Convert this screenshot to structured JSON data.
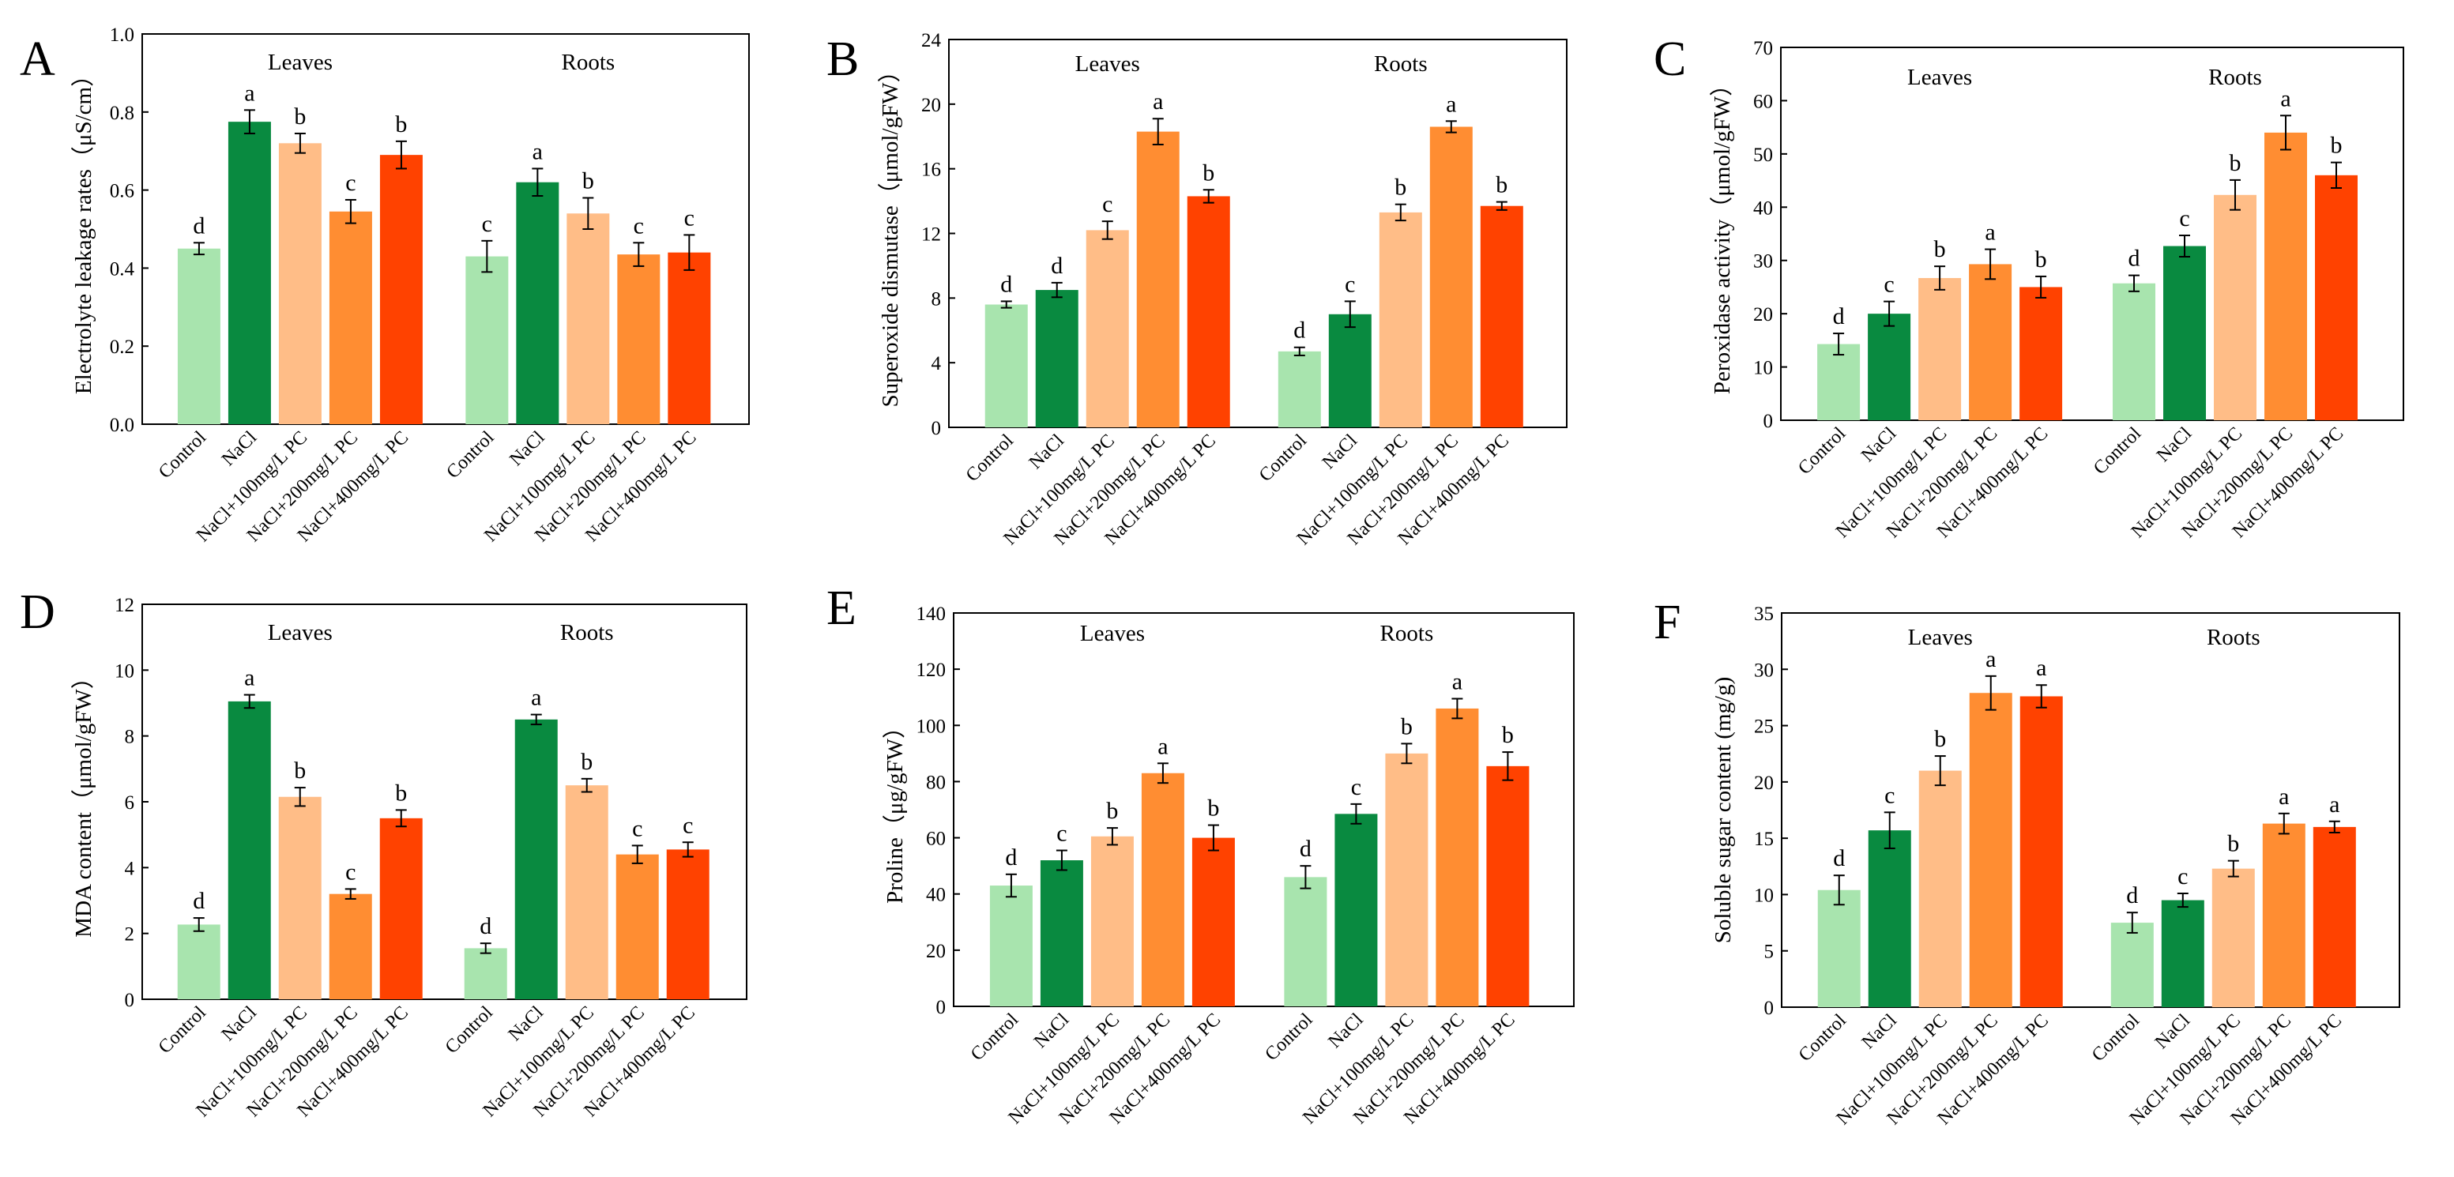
{
  "colors": {
    "Control": "#a8e4ae",
    "NaCl": "#098a40",
    "NaCl+100mg/L PC": "#ffbd87",
    "NaCl+200mg/L PC": "#ff8d32",
    "NaCl+400mg/L PC": "#ff4200"
  },
  "chart_data": [
    {
      "panel": "A",
      "type": "bar",
      "ylabel": "Electrolyte leakage rates（μS/cm）",
      "ylim": [
        0,
        1.0
      ],
      "yticks": [
        "0.0",
        "0.2",
        "0.4",
        "0.6",
        "0.8",
        "1.0"
      ],
      "categories": [
        "Control",
        "NaCl",
        "NaCl+100mg/L PC",
        "NaCl+200mg/L PC",
        "NaCl+400mg/L PC"
      ],
      "groups": [
        {
          "name": "Leaves",
          "values": [
            0.45,
            0.775,
            0.72,
            0.545,
            0.69
          ],
          "errors": [
            0.015,
            0.03,
            0.025,
            0.03,
            0.035
          ],
          "letters": [
            "d",
            "a",
            "b",
            "c",
            "b"
          ]
        },
        {
          "name": "Roots",
          "values": [
            0.43,
            0.62,
            0.54,
            0.435,
            0.44
          ],
          "errors": [
            0.04,
            0.035,
            0.04,
            0.03,
            0.045
          ],
          "letters": [
            "c",
            "a",
            "b",
            "c",
            "c"
          ]
        }
      ]
    },
    {
      "panel": "B",
      "type": "bar",
      "ylabel": "Superoxide dismutase（μmol/gFW）",
      "ylim": [
        0,
        24
      ],
      "yticks": [
        "0",
        "4",
        "8",
        "12",
        "16",
        "20",
        "24"
      ],
      "categories": [
        "Control",
        "NaCl",
        "NaCl+100mg/L PC",
        "NaCl+200mg/L PC",
        "NaCl+400mg/L PC"
      ],
      "groups": [
        {
          "name": "Leaves",
          "values": [
            7.6,
            8.5,
            12.2,
            18.3,
            14.3
          ],
          "errors": [
            0.2,
            0.45,
            0.55,
            0.8,
            0.4
          ],
          "letters": [
            "d",
            "d",
            "c",
            "a",
            "b"
          ]
        },
        {
          "name": "Roots",
          "values": [
            4.7,
            7.0,
            13.3,
            18.6,
            13.7
          ],
          "errors": [
            0.25,
            0.8,
            0.5,
            0.35,
            0.25
          ],
          "letters": [
            "d",
            "c",
            "b",
            "a",
            "b"
          ]
        }
      ]
    },
    {
      "panel": "C",
      "type": "bar",
      "ylabel": "Peroxidase activity（μmol/gFW）",
      "ylim": [
        0,
        70
      ],
      "yticks": [
        "0",
        "10",
        "20",
        "30",
        "40",
        "50",
        "60",
        "70"
      ],
      "categories": [
        "Control",
        "NaCl",
        "NaCl+100mg/L PC",
        "NaCl+200mg/L PC",
        "NaCl+400mg/L PC"
      ],
      "groups": [
        {
          "name": "Leaves",
          "values": [
            14.3,
            20.0,
            26.7,
            29.3,
            25.0
          ],
          "errors": [
            2.0,
            2.3,
            2.2,
            2.8,
            2.0
          ],
          "letters": [
            "d",
            "c",
            "b",
            "a",
            "b"
          ]
        },
        {
          "name": "Roots",
          "values": [
            25.7,
            32.7,
            42.3,
            54.0,
            46.0
          ],
          "errors": [
            1.5,
            2.0,
            2.8,
            3.2,
            2.4
          ],
          "letters": [
            "d",
            "c",
            "b",
            "a",
            "b"
          ]
        }
      ]
    },
    {
      "panel": "D",
      "type": "bar",
      "ylabel": "MDA content（μmol/gFW）",
      "ylim": [
        0,
        12
      ],
      "yticks": [
        "0",
        "2",
        "4",
        "6",
        "8",
        "10",
        "12"
      ],
      "categories": [
        "Control",
        "NaCl",
        "NaCl+100mg/L PC",
        "NaCl+200mg/L PC",
        "NaCl+400mg/L PC"
      ],
      "groups": [
        {
          "name": "Leaves",
          "values": [
            2.27,
            9.05,
            6.15,
            3.2,
            5.5
          ],
          "errors": [
            0.2,
            0.2,
            0.28,
            0.15,
            0.25
          ],
          "letters": [
            "d",
            "a",
            "b",
            "c",
            "b"
          ]
        },
        {
          "name": "Roots",
          "values": [
            1.55,
            8.5,
            6.5,
            4.4,
            4.55
          ],
          "errors": [
            0.15,
            0.15,
            0.2,
            0.27,
            0.22
          ],
          "letters": [
            "d",
            "a",
            "b",
            "c",
            "c"
          ]
        }
      ]
    },
    {
      "panel": "E",
      "type": "bar",
      "ylabel": "Proline（μg/gFW）",
      "ylim": [
        0,
        140
      ],
      "yticks": [
        "0",
        "20",
        "40",
        "60",
        "80",
        "100",
        "120",
        "140"
      ],
      "categories": [
        "Control",
        "NaCl",
        "NaCl+100mg/L PC",
        "NaCl+200mg/L PC",
        "NaCl+400mg/L PC"
      ],
      "groups": [
        {
          "name": "Leaves",
          "values": [
            43.0,
            52.0,
            60.5,
            83.0,
            60.0
          ],
          "errors": [
            4.0,
            3.5,
            3.0,
            3.5,
            4.5
          ],
          "letters": [
            "d",
            "c",
            "b",
            "a",
            "b"
          ]
        },
        {
          "name": "Roots",
          "values": [
            46.0,
            68.5,
            90.0,
            106.0,
            85.5
          ],
          "errors": [
            4.0,
            3.5,
            3.5,
            3.5,
            5.0
          ],
          "letters": [
            "d",
            "c",
            "b",
            "a",
            "b"
          ]
        }
      ]
    },
    {
      "panel": "F",
      "type": "bar",
      "ylabel": "Soluble sugar content (mg/g)",
      "ylim": [
        0,
        35
      ],
      "yticks": [
        "0",
        "5",
        "10",
        "15",
        "20",
        "25",
        "30",
        "35"
      ],
      "categories": [
        "Control",
        "NaCl",
        "NaCl+100mg/L PC",
        "NaCl+200mg/L PC",
        "NaCl+400mg/L PC"
      ],
      "groups": [
        {
          "name": "Leaves",
          "values": [
            10.4,
            15.7,
            21.0,
            27.9,
            27.6
          ],
          "errors": [
            1.3,
            1.6,
            1.3,
            1.5,
            1.0
          ],
          "letters": [
            "d",
            "c",
            "b",
            "a",
            "a"
          ]
        },
        {
          "name": "Roots",
          "values": [
            7.5,
            9.5,
            12.3,
            16.3,
            16.0
          ],
          "errors": [
            0.9,
            0.6,
            0.7,
            0.9,
            0.5
          ],
          "letters": [
            "d",
            "c",
            "b",
            "a",
            "a"
          ]
        }
      ]
    }
  ]
}
